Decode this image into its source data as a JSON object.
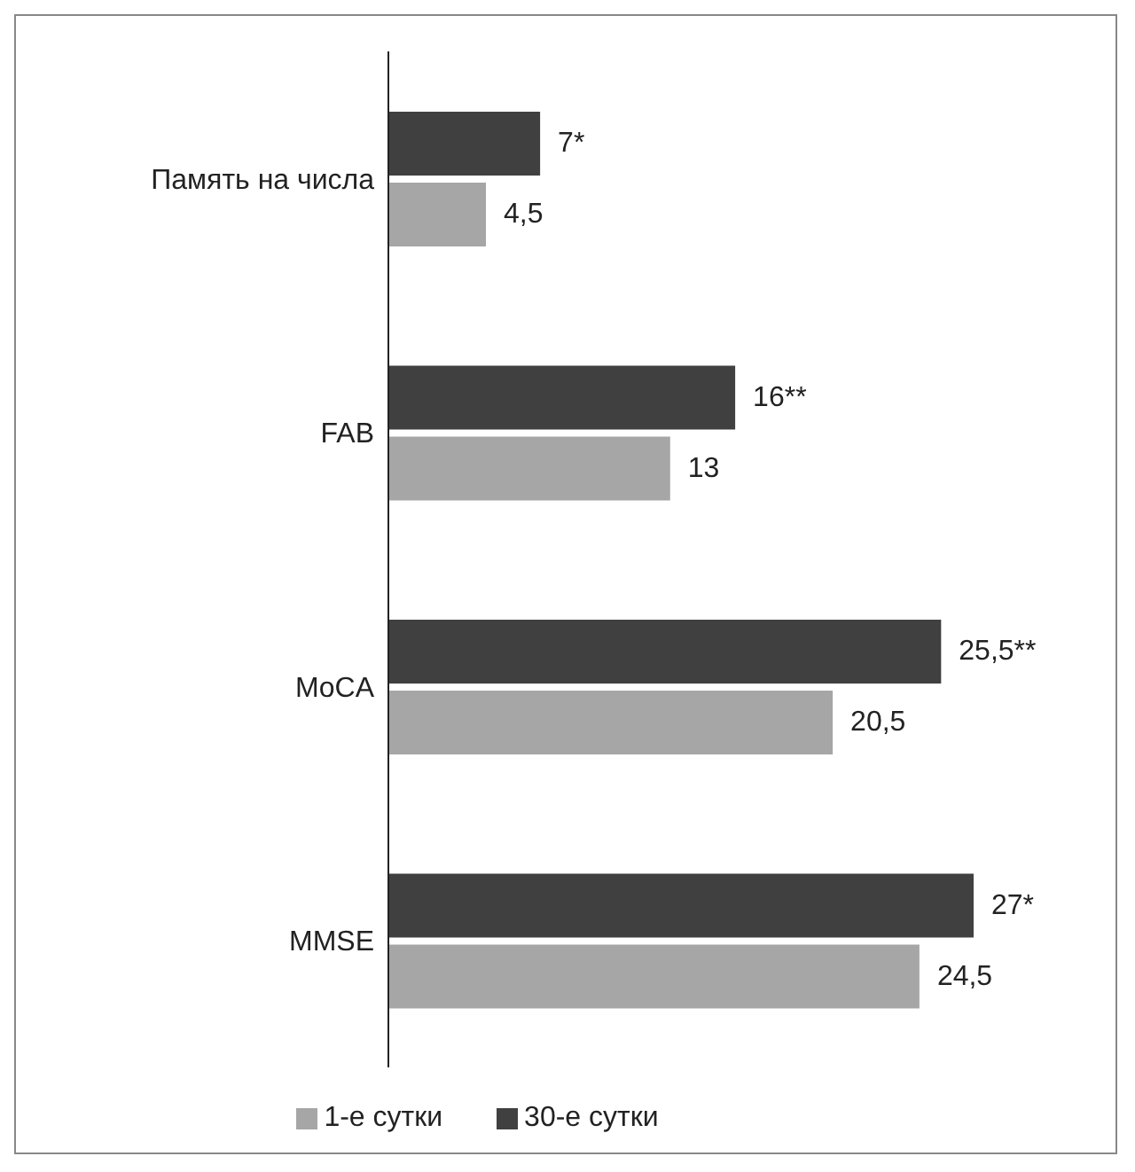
{
  "chart_data": {
    "type": "bar",
    "orientation": "horizontal",
    "categories": [
      "Память на числа",
      "FAB",
      "MoCA",
      "MMSE"
    ],
    "series": [
      {
        "name": "30-е сутки",
        "color": "#404040",
        "values": [
          7,
          16,
          25.5,
          27
        ],
        "value_labels": [
          "7*",
          "16**",
          "25,5**",
          "27*"
        ]
      },
      {
        "name": "1-е сутки",
        "color": "#a6a6a6",
        "values": [
          4.5,
          13,
          20.5,
          24.5
        ],
        "value_labels": [
          "4,5",
          "13",
          "20,5",
          "24,5"
        ]
      }
    ],
    "legend": "bottom",
    "tick_labels": "y"
  }
}
